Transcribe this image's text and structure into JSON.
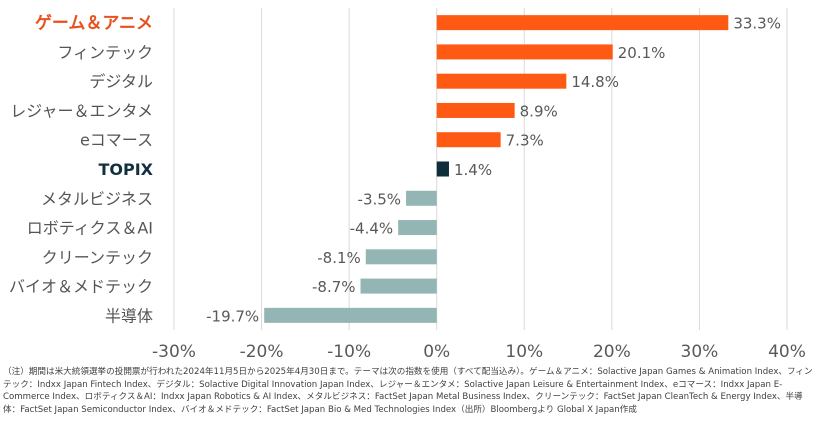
{
  "chart_data": {
    "type": "bar",
    "orientation": "horizontal",
    "categories": [
      "ゲーム＆アニメ",
      "フィンテック",
      "デジタル",
      "レジャー＆エンタメ",
      "eコマース",
      "TOPIX",
      "メタルビジネス",
      "ロボティクス＆AI",
      "クリーンテック",
      "バイオ＆メドテック",
      "半導体"
    ],
    "values": [
      33.3,
      20.1,
      14.8,
      8.9,
      7.3,
      1.4,
      -3.5,
      -4.4,
      -8.1,
      -8.7,
      -19.7
    ],
    "value_labels": [
      "33.3%",
      "20.1%",
      "14.8%",
      "8.9%",
      "7.3%",
      "1.4%",
      "-3.5%",
      "-4.4%",
      "-8.1%",
      "-8.7%",
      "-19.7%"
    ],
    "highlight": [
      "orange",
      "none",
      "none",
      "none",
      "none",
      "dark",
      "none",
      "none",
      "none",
      "none",
      "none"
    ],
    "xlim": [
      -30,
      40
    ],
    "xticks": [
      -30,
      -20,
      -10,
      0,
      10,
      20,
      30,
      40
    ],
    "xtick_labels": [
      "-30%",
      "-20%",
      "-10%",
      "0%",
      "10%",
      "20%",
      "30%",
      "40%"
    ],
    "colors": {
      "positive": "#FF5A14",
      "negative": "#93B5B3",
      "topix": "#0E2F3A",
      "highlight_label": "#E8501E",
      "topix_label": "#123040"
    },
    "title": "",
    "xlabel": "",
    "ylabel": ""
  },
  "footnote": "（注）期間は米大統領選挙の投開票が行われた2024年11月5日から2025年4月30日まで。テーマは次の指数を使用（すべて配当込み）。ゲーム＆アニメ：Solactive Japan Games & Animation Index、フィンテック：Indxx Japan Fintech Index、デジタル：Solactive Digital Innovation Japan Index、レジャー＆エンタメ：Solactive Japan Leisure & Entertainment Index、eコマース：Indxx Japan E-Commerce Index、ロボティクス＆AI：Indxx Japan Robotics & AI Index、メタルビジネス：FactSet Japan Metal Business Index、クリーンテック：FactSet Japan CleanTech & Energy Index、半導体：FactSet Japan Semiconductor Index、バイオ＆メドテック：FactSet Japan Bio & Med Technologies Index（出所）Bloombergより Global X Japan作成"
}
